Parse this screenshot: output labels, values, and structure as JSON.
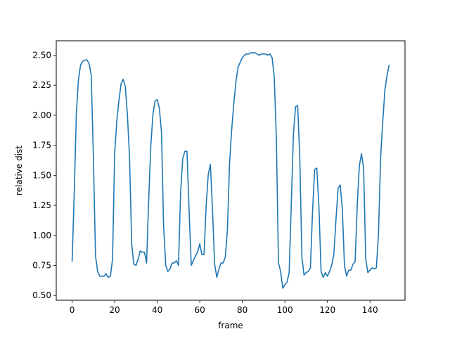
{
  "chart_data": {
    "type": "line",
    "title": "",
    "xlabel": "frame",
    "ylabel": "relative dist",
    "xlim": [
      -7.45,
      156.45
    ],
    "ylim": [
      0.46,
      2.62
    ],
    "xticks": [
      0,
      20,
      40,
      60,
      80,
      100,
      120,
      140
    ],
    "yticks": [
      0.5,
      0.75,
      1.0,
      1.25,
      1.5,
      1.75,
      2.0,
      2.25,
      2.5
    ],
    "xtick_labels": [
      "0",
      "20",
      "40",
      "60",
      "80",
      "100",
      "120",
      "140"
    ],
    "ytick_labels": [
      "0.50",
      "0.75",
      "1.00",
      "1.25",
      "1.50",
      "1.75",
      "2.00",
      "2.25",
      "2.50"
    ],
    "grid": false,
    "color": "#1f77b4",
    "series": [
      {
        "x": [
          0,
          1,
          2,
          3,
          4,
          5,
          6,
          7,
          8,
          9,
          10,
          11,
          12,
          13,
          14,
          15,
          16,
          17,
          18,
          19,
          20,
          21,
          22,
          23,
          24,
          25,
          26,
          27,
          28,
          29,
          30,
          31,
          32,
          33,
          34,
          35,
          36,
          37,
          38,
          39,
          40,
          41,
          42,
          43,
          44,
          45,
          46,
          47,
          48,
          49,
          50,
          51,
          52,
          53,
          54,
          55,
          56,
          57,
          58,
          59,
          60,
          61,
          62,
          63,
          64,
          65,
          66,
          67,
          68,
          69,
          70,
          71,
          72,
          73,
          74,
          75,
          76,
          77,
          78,
          79,
          80,
          81,
          82,
          83,
          84,
          85,
          86,
          87,
          88,
          89,
          90,
          91,
          92,
          93,
          94,
          95,
          96,
          97,
          98,
          99,
          100,
          101,
          102,
          103,
          104,
          105,
          106,
          107,
          108,
          109,
          110,
          111,
          112,
          113,
          114,
          115,
          116,
          117,
          118,
          119,
          120,
          121,
          122,
          123,
          124,
          125,
          126,
          127,
          128,
          129,
          130,
          131,
          132,
          133,
          134,
          135,
          136,
          137,
          138,
          139,
          140,
          141,
          142,
          143,
          144,
          145,
          146,
          147,
          148,
          149
        ],
        "y": [
          0.78,
          1.35,
          2.02,
          2.3,
          2.42,
          2.45,
          2.46,
          2.46,
          2.43,
          2.33,
          1.65,
          0.83,
          0.7,
          0.66,
          0.66,
          0.66,
          0.68,
          0.65,
          0.66,
          0.8,
          1.68,
          1.95,
          2.12,
          2.26,
          2.3,
          2.24,
          2.0,
          1.65,
          0.93,
          0.76,
          0.75,
          0.8,
          0.87,
          0.86,
          0.86,
          0.77,
          1.3,
          1.75,
          2.01,
          2.12,
          2.13,
          2.06,
          1.86,
          1.08,
          0.75,
          0.7,
          0.72,
          0.77,
          0.77,
          0.79,
          0.75,
          1.36,
          1.64,
          1.7,
          1.7,
          1.2,
          0.75,
          0.79,
          0.83,
          0.86,
          0.93,
          0.84,
          0.84,
          1.25,
          1.51,
          1.59,
          1.2,
          0.76,
          0.65,
          0.72,
          0.77,
          0.77,
          0.82,
          1.05,
          1.6,
          1.88,
          2.1,
          2.28,
          2.4,
          2.44,
          2.48,
          2.5,
          2.51,
          2.51,
          2.52,
          2.52,
          2.52,
          2.51,
          2.5,
          2.51,
          2.51,
          2.51,
          2.5,
          2.51,
          2.48,
          2.32,
          1.8,
          0.77,
          0.7,
          0.56,
          0.59,
          0.61,
          0.69,
          1.25,
          1.84,
          2.07,
          2.08,
          1.65,
          0.82,
          0.67,
          0.69,
          0.7,
          0.73,
          1.2,
          1.55,
          1.56,
          1.24,
          0.7,
          0.65,
          0.69,
          0.66,
          0.7,
          0.75,
          0.84,
          1.13,
          1.39,
          1.42,
          1.22,
          0.75,
          0.66,
          0.71,
          0.71,
          0.76,
          0.78,
          1.25,
          1.58,
          1.68,
          1.56,
          0.8,
          0.69,
          0.71,
          0.73,
          0.72,
          0.73,
          1.02,
          1.65,
          1.95,
          2.21,
          2.33,
          2.42
        ]
      }
    ]
  }
}
